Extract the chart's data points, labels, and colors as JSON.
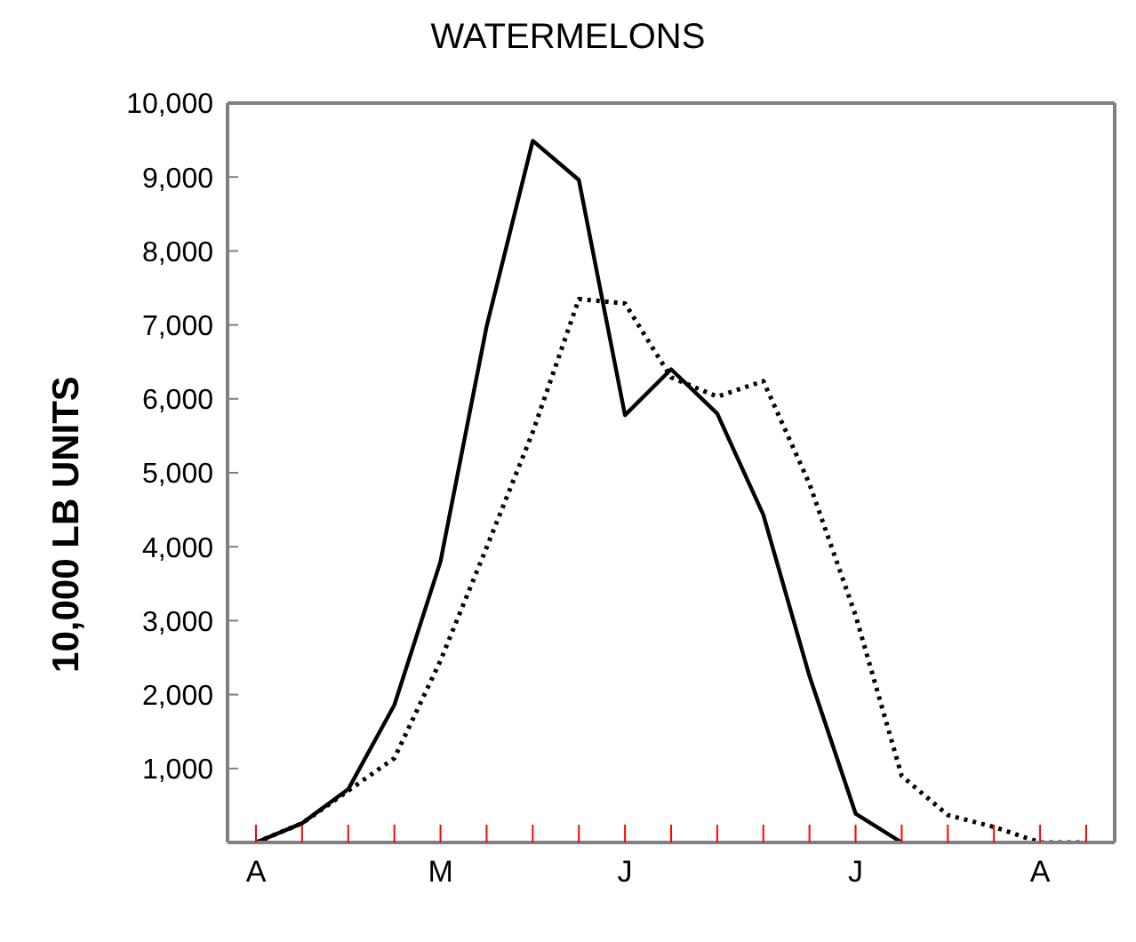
{
  "chart_data": {
    "type": "line",
    "title": "WATERMELONS",
    "ylabel": "10,000 LB UNITS",
    "categories": [
      "A",
      null,
      null,
      null,
      "M",
      null,
      null,
      null,
      "J",
      null,
      null,
      null,
      null,
      "J",
      null,
      null,
      null,
      "A",
      null
    ],
    "series": [
      {
        "color": "#000000",
        "line_style": "solid",
        "values": [
          0,
          260,
          720,
          1860,
          3800,
          6980,
          9490,
          8960,
          5780,
          6400,
          5800,
          4430,
          2250,
          390,
          0,
          null,
          null,
          null,
          null
        ]
      },
      {
        "color": "#000000",
        "line_style": "dotted",
        "values": [
          0,
          260,
          700,
          1140,
          2460,
          3990,
          5550,
          7350,
          7290,
          6290,
          6030,
          6240,
          4850,
          3070,
          900,
          370,
          210,
          0,
          0
        ]
      }
    ],
    "ylim": [
      0,
      10000
    ],
    "yticks": [
      {
        "value": 1000,
        "label": "1,000"
      },
      {
        "value": 2000,
        "label": "2,000"
      },
      {
        "value": 3000,
        "label": "3,000"
      },
      {
        "value": 4000,
        "label": "4,000"
      },
      {
        "value": 5000,
        "label": "5,000"
      },
      {
        "value": 6000,
        "label": "6,000"
      },
      {
        "value": 7000,
        "label": "7,000"
      },
      {
        "value": 8000,
        "label": "8,000"
      },
      {
        "value": 9000,
        "label": "9,000"
      },
      {
        "value": 10000,
        "label": "10,000"
      }
    ],
    "marker": "none"
  }
}
